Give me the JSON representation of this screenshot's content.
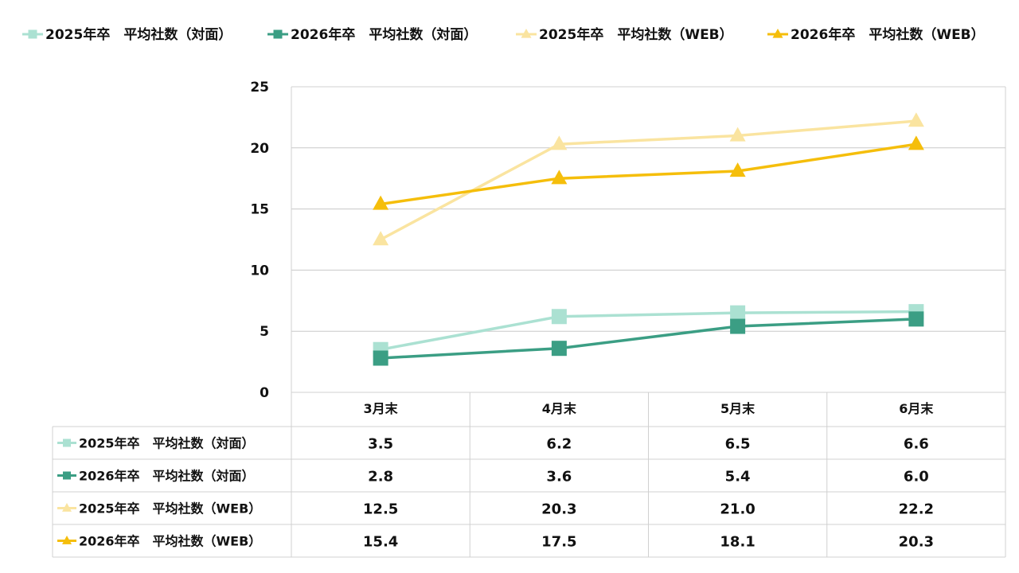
{
  "chart_data": {
    "type": "line",
    "categories": [
      "3月末",
      "4月末",
      "5月末",
      "6月末"
    ],
    "ylim": [
      0,
      25
    ],
    "yticks": [
      0,
      5,
      10,
      15,
      20,
      25
    ],
    "grid": true,
    "legend_position": "top",
    "data_table": true,
    "series": [
      {
        "name": "2025年卒　平均社数（対面）",
        "values": [
          3.5,
          6.2,
          6.5,
          6.6
        ],
        "display": [
          "3.5",
          "6.2",
          "6.5",
          "6.6"
        ],
        "color": "#abe1d2",
        "marker": "square"
      },
      {
        "name": "2026年卒　平均社数（対面）",
        "values": [
          2.8,
          3.6,
          5.4,
          6.0
        ],
        "display": [
          "2.8",
          "3.6",
          "5.4",
          "6.0"
        ],
        "color": "#3b9e84",
        "marker": "square"
      },
      {
        "name": "2025年卒　平均社数（WEB）",
        "values": [
          12.5,
          20.3,
          21.0,
          22.2
        ],
        "display": [
          "12.5",
          "20.3",
          "21.0",
          "22.2"
        ],
        "color": "#fae4a0",
        "marker": "triangle"
      },
      {
        "name": "2026年卒　平均社数（WEB）",
        "values": [
          15.4,
          17.5,
          18.1,
          20.3
        ],
        "display": [
          "15.4",
          "17.5",
          "18.1",
          "20.3"
        ],
        "color": "#f5be0b",
        "marker": "triangle"
      }
    ]
  }
}
